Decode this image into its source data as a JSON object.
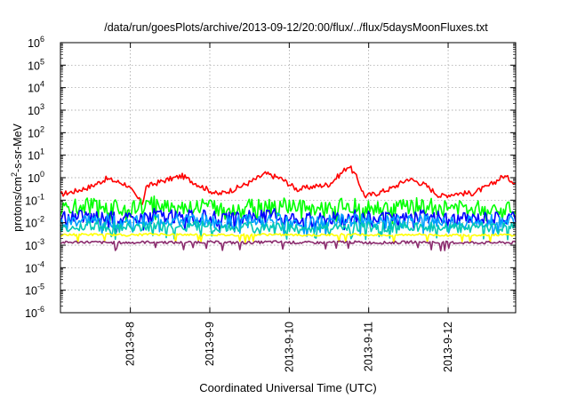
{
  "chart_data": {
    "type": "line",
    "title": "/data/run/goesPlots/archive/2013-09-12/20:00/flux/../flux/5daysMoonFluxes.txt",
    "xlabel": "Coordinated Universal Time (UTC)",
    "ylabel": "protons/cm2-s-sr-MeV",
    "ylabel_parts": {
      "pre": "protons/cm",
      "sup": "2",
      "post": "-s-sr-MeV"
    },
    "yscale": "log",
    "ylim_exponents": [
      -6,
      6
    ],
    "y_ticks": [
      {
        "base": "10",
        "exp": "-6"
      },
      {
        "base": "10",
        "exp": "-5"
      },
      {
        "base": "10",
        "exp": "-4"
      },
      {
        "base": "10",
        "exp": "-3"
      },
      {
        "base": "10",
        "exp": "-2"
      },
      {
        "base": "10",
        "exp": "-1"
      },
      {
        "base": "10",
        "exp": "0"
      },
      {
        "base": "10",
        "exp": "1"
      },
      {
        "base": "10",
        "exp": "2"
      },
      {
        "base": "10",
        "exp": "3"
      },
      {
        "base": "10",
        "exp": "4"
      },
      {
        "base": "10",
        "exp": "5"
      },
      {
        "base": "10",
        "exp": "6"
      }
    ],
    "x_range_days": [
      7.12,
      12.85
    ],
    "x_ticks": [
      {
        "label": "2013-9-8",
        "day": 8
      },
      {
        "label": "2013-9-9",
        "day": 9
      },
      {
        "label": "2013-9-10",
        "day": 10
      },
      {
        "label": "2013-9-11",
        "day": 11
      },
      {
        "label": "2013-9-12",
        "day": 12
      }
    ],
    "grid": true,
    "series": [
      {
        "color": "#ff0000",
        "points": [
          [
            7.12,
            0.18
          ],
          [
            7.3,
            0.25
          ],
          [
            7.5,
            0.4
          ],
          [
            7.7,
            0.9
          ],
          [
            7.95,
            0.5
          ],
          [
            8.15,
            0.07
          ],
          [
            8.2,
            0.4
          ],
          [
            8.4,
            0.7
          ],
          [
            8.65,
            1.2
          ],
          [
            8.9,
            0.4
          ],
          [
            9.1,
            0.18
          ],
          [
            9.3,
            0.3
          ],
          [
            9.5,
            0.6
          ],
          [
            9.7,
            1.5
          ],
          [
            9.9,
            0.9
          ],
          [
            10.1,
            0.3
          ],
          [
            10.3,
            0.4
          ],
          [
            10.5,
            0.5
          ],
          [
            10.65,
            1.5
          ],
          [
            10.75,
            3.5
          ],
          [
            10.85,
            1.0
          ],
          [
            10.95,
            0.15
          ],
          [
            11.1,
            0.2
          ],
          [
            11.3,
            0.35
          ],
          [
            11.5,
            0.9
          ],
          [
            11.7,
            0.5
          ],
          [
            11.9,
            0.15
          ],
          [
            12.1,
            0.2
          ],
          [
            12.3,
            0.2
          ],
          [
            12.5,
            0.4
          ],
          [
            12.7,
            1.2
          ],
          [
            12.85,
            0.6
          ]
        ]
      },
      {
        "color": "#00ff00",
        "points": [
          [
            7.12,
            0.04
          ],
          [
            7.4,
            0.06
          ],
          [
            7.7,
            0.05
          ],
          [
            8.0,
            0.04
          ],
          [
            8.3,
            0.07
          ],
          [
            8.6,
            0.05
          ],
          [
            8.9,
            0.06
          ],
          [
            9.2,
            0.04
          ],
          [
            9.5,
            0.05
          ],
          [
            9.8,
            0.06
          ],
          [
            10.1,
            0.05
          ],
          [
            10.4,
            0.04
          ],
          [
            10.7,
            0.06
          ],
          [
            11.0,
            0.05
          ],
          [
            11.3,
            0.04
          ],
          [
            11.6,
            0.06
          ],
          [
            11.9,
            0.05
          ],
          [
            12.2,
            0.04
          ],
          [
            12.5,
            0.05
          ],
          [
            12.85,
            0.05
          ]
        ]
      },
      {
        "color": "#0000ff",
        "points": [
          [
            7.12,
            0.015
          ],
          [
            7.4,
            0.02
          ],
          [
            7.7,
            0.018
          ],
          [
            8.0,
            0.015
          ],
          [
            8.3,
            0.025
          ],
          [
            8.6,
            0.018
          ],
          [
            8.9,
            0.02
          ],
          [
            9.2,
            0.014
          ],
          [
            9.5,
            0.018
          ],
          [
            9.8,
            0.022
          ],
          [
            10.1,
            0.017
          ],
          [
            10.4,
            0.015
          ],
          [
            10.7,
            0.02
          ],
          [
            11.0,
            0.018
          ],
          [
            11.3,
            0.014
          ],
          [
            11.6,
            0.02
          ],
          [
            11.9,
            0.017
          ],
          [
            12.2,
            0.015
          ],
          [
            12.5,
            0.018
          ],
          [
            12.85,
            0.017
          ]
        ]
      },
      {
        "color": "#00a0ff",
        "points": [
          [
            7.12,
            0.01
          ],
          [
            7.4,
            0.013
          ],
          [
            7.7,
            0.012
          ],
          [
            8.0,
            0.01
          ],
          [
            8.3,
            0.015
          ],
          [
            8.6,
            0.012
          ],
          [
            8.9,
            0.013
          ],
          [
            9.2,
            0.01
          ],
          [
            9.5,
            0.012
          ],
          [
            9.8,
            0.014
          ],
          [
            10.1,
            0.011
          ],
          [
            10.4,
            0.01
          ],
          [
            10.7,
            0.013
          ],
          [
            11.0,
            0.012
          ],
          [
            11.3,
            0.01
          ],
          [
            11.6,
            0.013
          ],
          [
            11.9,
            0.011
          ],
          [
            12.2,
            0.01
          ],
          [
            12.5,
            0.012
          ],
          [
            12.85,
            0.011
          ]
        ]
      },
      {
        "color": "#00c8b4",
        "points": [
          [
            7.12,
            0.006
          ],
          [
            7.4,
            0.007
          ],
          [
            7.7,
            0.0065
          ],
          [
            8.0,
            0.006
          ],
          [
            8.3,
            0.0075
          ],
          [
            8.6,
            0.0065
          ],
          [
            8.9,
            0.007
          ],
          [
            9.2,
            0.006
          ],
          [
            9.5,
            0.0065
          ],
          [
            9.8,
            0.007
          ],
          [
            10.1,
            0.0062
          ],
          [
            10.4,
            0.006
          ],
          [
            10.7,
            0.007
          ],
          [
            11.0,
            0.0065
          ],
          [
            11.3,
            0.006
          ],
          [
            11.6,
            0.007
          ],
          [
            11.9,
            0.0062
          ],
          [
            12.2,
            0.006
          ],
          [
            12.5,
            0.0065
          ],
          [
            12.85,
            0.0062
          ]
        ]
      },
      {
        "color": "#ffff00",
        "points": [
          [
            7.12,
            0.0028
          ],
          [
            7.4,
            0.003
          ],
          [
            7.7,
            0.0029
          ],
          [
            8.0,
            0.0028
          ],
          [
            8.3,
            0.0031
          ],
          [
            8.6,
            0.0029
          ],
          [
            8.9,
            0.003
          ],
          [
            9.2,
            0.0028
          ],
          [
            9.5,
            0.0029
          ],
          [
            9.8,
            0.003
          ],
          [
            10.1,
            0.0028
          ],
          [
            10.4,
            0.0028
          ],
          [
            10.7,
            0.003
          ],
          [
            11.0,
            0.0029
          ],
          [
            11.3,
            0.0028
          ],
          [
            11.6,
            0.003
          ],
          [
            11.9,
            0.0028
          ],
          [
            12.2,
            0.0028
          ],
          [
            12.5,
            0.0029
          ],
          [
            12.85,
            0.0028
          ]
        ]
      },
      {
        "color": "#8b2c6e",
        "points": [
          [
            7.12,
            0.0013
          ],
          [
            7.4,
            0.0014
          ],
          [
            7.7,
            0.0013
          ],
          [
            8.0,
            0.0013
          ],
          [
            8.3,
            0.0014
          ],
          [
            8.6,
            0.0013
          ],
          [
            8.9,
            0.0014
          ],
          [
            9.2,
            0.0013
          ],
          [
            9.5,
            0.0013
          ],
          [
            9.8,
            0.0014
          ],
          [
            10.1,
            0.0013
          ],
          [
            10.4,
            0.0013
          ],
          [
            10.7,
            0.0014
          ],
          [
            11.0,
            0.0013
          ],
          [
            11.3,
            0.0013
          ],
          [
            11.6,
            0.0014
          ],
          [
            11.9,
            0.0013
          ],
          [
            12.2,
            0.0013
          ],
          [
            12.5,
            0.0013
          ],
          [
            12.85,
            0.0013
          ]
        ]
      }
    ]
  }
}
